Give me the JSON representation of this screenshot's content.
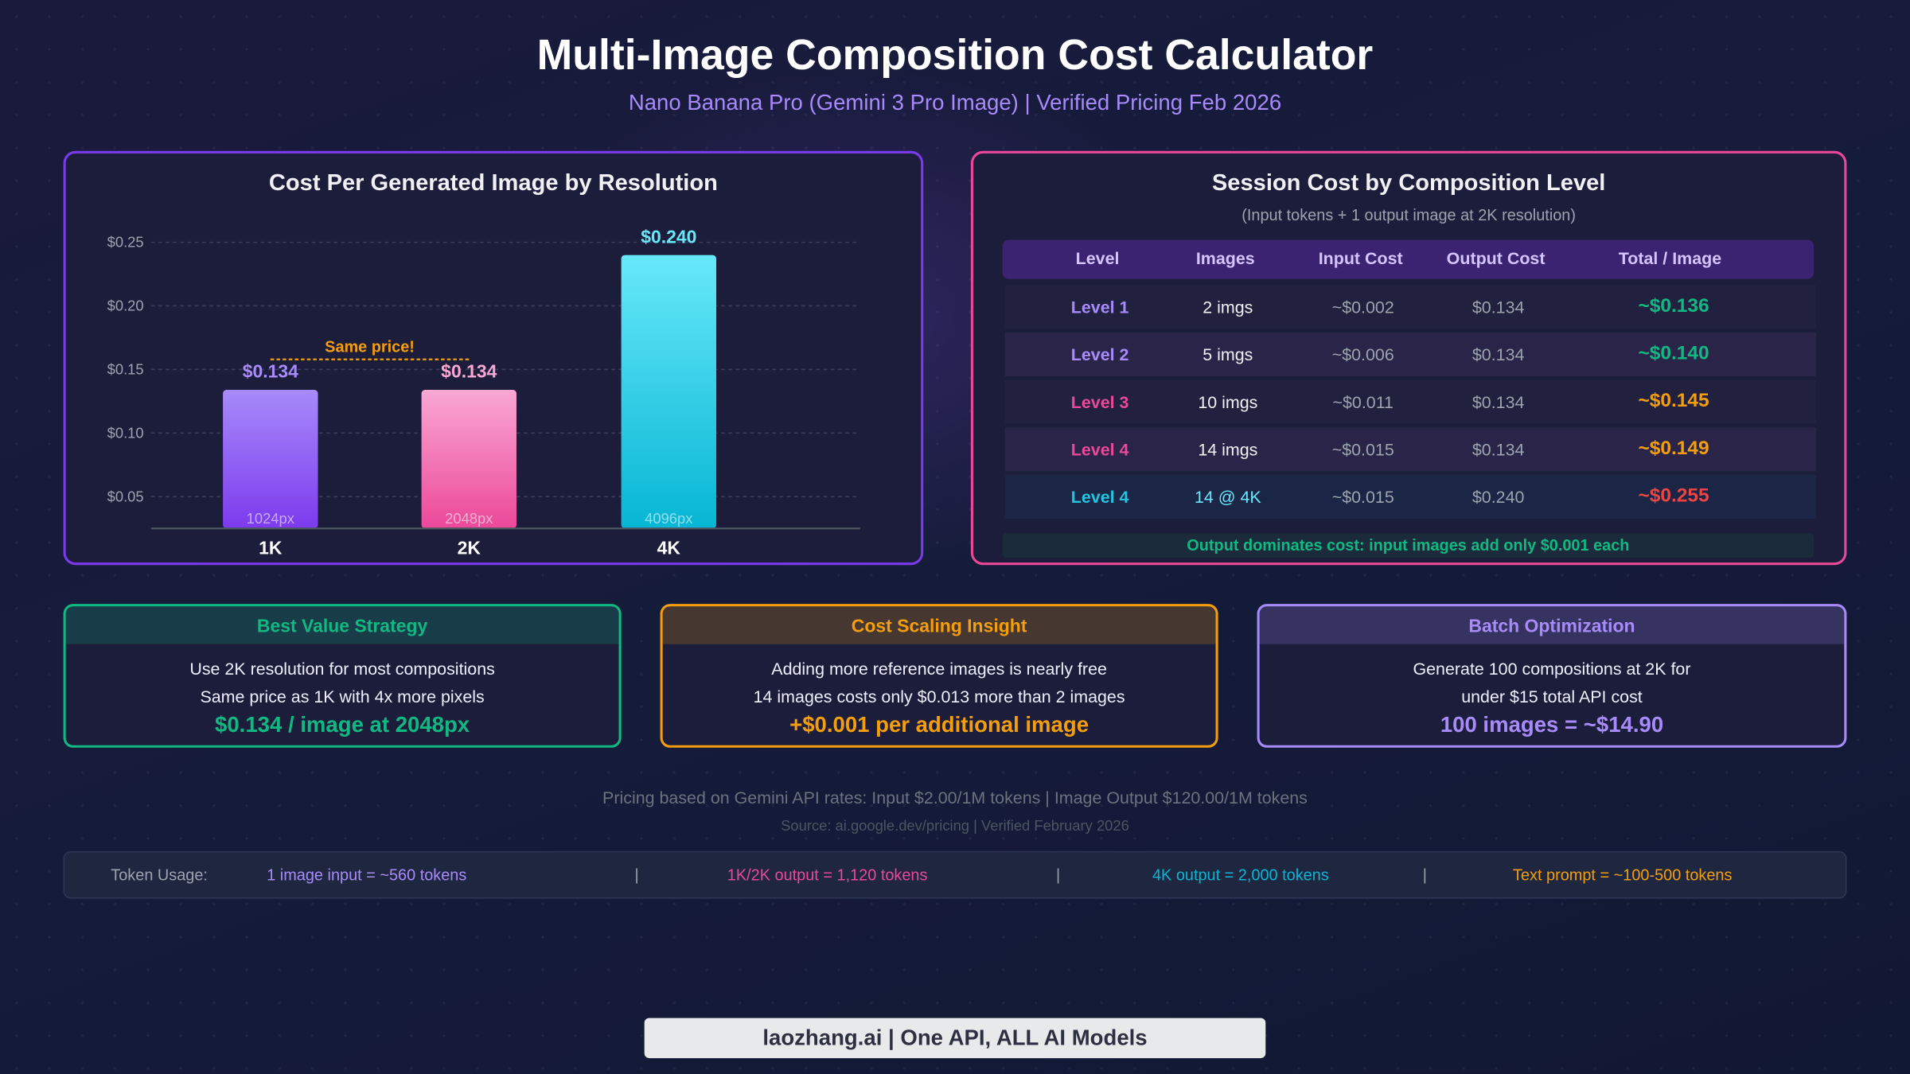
{
  "header": {
    "title": "Multi-Image Composition Cost Calculator",
    "subtitle": "Nano Banana Pro (Gemini 3 Pro Image) | Verified Pricing Feb 2026"
  },
  "chart_data": {
    "type": "bar",
    "title": "Cost Per Generated Image by Resolution",
    "categories": [
      "1K",
      "2K",
      "4K"
    ],
    "values": [
      0.134,
      0.134,
      0.24
    ],
    "value_labels": [
      "$0.134",
      "$0.134",
      "$0.240"
    ],
    "bar_sublabels": [
      "1024px",
      "2048px",
      "4096px"
    ],
    "colors": [
      [
        "#a78bfa",
        "#7c3aed"
      ],
      [
        "#f9a8d4",
        "#ec4899"
      ],
      [
        "#67e8f9",
        "#06b6d4"
      ]
    ],
    "label_colors": [
      "#a78bfa",
      "#f9a8d4",
      "#67e8f9"
    ],
    "yticks": [
      0.05,
      0.1,
      0.15,
      0.2,
      0.25
    ],
    "ytick_labels": [
      "$0.05",
      "$0.10",
      "$0.15",
      "$0.20",
      "$0.25"
    ],
    "ylim": [
      0.025,
      0.25
    ],
    "grid": true,
    "annotation": {
      "text": "Same price!",
      "between": [
        "1K",
        "2K"
      ],
      "color": "#f59e0b"
    },
    "xlabel": "",
    "ylabel": ""
  },
  "table": {
    "title": "Session Cost by Composition Level",
    "subtitle": "(Input tokens + 1 output image at 2K resolution)",
    "headers": [
      "Level",
      "Images",
      "Input Cost",
      "Output Cost",
      "Total / Image"
    ],
    "rows": [
      {
        "level": "Level 1",
        "images": "2 imgs",
        "input": "~$0.002",
        "output": "$0.134",
        "total": "~$0.136",
        "level_color": "#a78bfa",
        "images_color": "#f1f1f5",
        "total_color": "#10b981",
        "bg": "#22203f"
      },
      {
        "level": "Level 2",
        "images": "5 imgs",
        "input": "~$0.006",
        "output": "$0.134",
        "total": "~$0.140",
        "level_color": "#a78bfa",
        "images_color": "#f1f1f5",
        "total_color": "#10b981",
        "bg": "#2a2548"
      },
      {
        "level": "Level 3",
        "images": "10 imgs",
        "input": "~$0.011",
        "output": "$0.134",
        "total": "~$0.145",
        "level_color": "#ec4899",
        "images_color": "#f1f1f5",
        "total_color": "#f59e0b",
        "bg": "#22203f"
      },
      {
        "level": "Level 4",
        "images": "14 imgs",
        "input": "~$0.015",
        "output": "$0.134",
        "total": "~$0.149",
        "level_color": "#ec4899",
        "images_color": "#f1f1f5",
        "total_color": "#f59e0b",
        "bg": "#2a2548"
      },
      {
        "level": "Level 4",
        "images": "14 @ 4K",
        "input": "~$0.015",
        "output": "$0.240",
        "total": "~$0.255",
        "level_color": "#22c5e0",
        "images_color": "#67e8f9",
        "total_color": "#ef4444",
        "bg": "#1b2545"
      }
    ],
    "footer": "Output dominates cost: input images add only $0.001 each"
  },
  "cards": [
    {
      "title": "Best Value Strategy",
      "lines": [
        "Use 2K resolution for most compositions",
        "Same price as 1K with 4x more pixels"
      ],
      "highlight": "$0.134 / image at 2048px",
      "color": "#10b981"
    },
    {
      "title": "Cost Scaling Insight",
      "lines": [
        "Adding more reference images is nearly free",
        "14 images costs only $0.013 more than 2 images"
      ],
      "highlight": "+$0.001 per additional image",
      "color": "#f59e0b"
    },
    {
      "title": "Batch Optimization",
      "lines": [
        "Generate 100 compositions at 2K for",
        "under $15 total API cost"
      ],
      "highlight": "100 images = ~$14.90",
      "color": "#a78bfa"
    }
  ],
  "footer": {
    "pricing": "Pricing based on Gemini API rates: Input $2.00/1M tokens | Image Output $120.00/1M tokens",
    "source": "Source: ai.google.dev/pricing | Verified February 2026"
  },
  "tokens": {
    "label": "Token Usage:",
    "items": [
      "1 image input = ~560 tokens",
      "1K/2K output = 1,120 tokens",
      "4K output = 2,000 tokens",
      "Text prompt = ~100-500 tokens"
    ],
    "separator": "|"
  },
  "brand": "laozhang.ai | One API, ALL AI Models"
}
